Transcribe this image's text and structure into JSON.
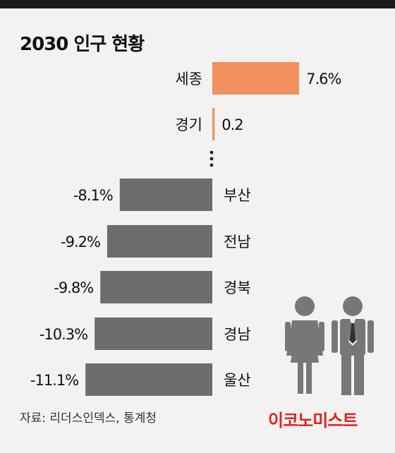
{
  "title": "2030 인구 현황",
  "source": "자료: 리더스인덱스, 통계청",
  "brand": "이코노미스트",
  "colors": {
    "positive": "#f0915e",
    "negative": "#6c6c6c",
    "text": "#111111",
    "brand": "#e2211c"
  },
  "chart_data": {
    "type": "bar",
    "orientation": "horizontal-diverging",
    "categories": [
      "세종",
      "경기",
      "부산",
      "전남",
      "경북",
      "경남",
      "울산"
    ],
    "values": [
      7.6,
      0.2,
      -8.1,
      -9.2,
      -9.8,
      -10.3,
      -11.1
    ],
    "labels": [
      "7.6%",
      "0.2",
      "-8.1%",
      "-9.2%",
      "-9.8%",
      "-10.3%",
      "-11.1%"
    ],
    "ellipsis_after": "경기"
  }
}
